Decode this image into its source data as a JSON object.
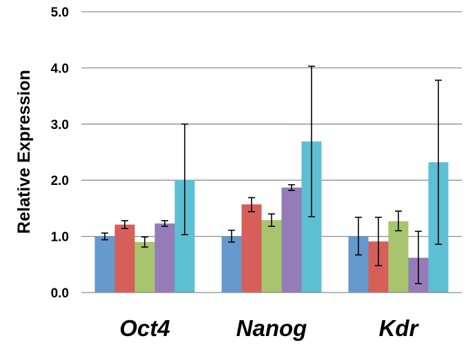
{
  "chart_data": {
    "type": "bar",
    "title": "",
    "xlabel": "",
    "ylabel": "Relative Expression",
    "ylim": [
      0,
      5
    ],
    "yticks": [
      "0.0",
      "1.0",
      "2.0",
      "3.0",
      "4.0",
      "5.0"
    ],
    "categories": [
      "Oct4",
      "Nanog",
      "Kdr"
    ],
    "grid": true,
    "legend": "none",
    "series": [
      {
        "color": "#6699cc",
        "values": [
          1.0,
          1.0,
          1.0
        ],
        "err_low": [
          0.94,
          0.9,
          0.67
        ],
        "err_high": [
          1.06,
          1.11,
          1.34
        ]
      },
      {
        "color": "#d65f5a",
        "values": [
          1.21,
          1.57,
          0.91
        ],
        "err_low": [
          1.14,
          1.44,
          0.48
        ],
        "err_high": [
          1.28,
          1.69,
          1.34
        ]
      },
      {
        "color": "#a8c46e",
        "values": [
          0.9,
          1.29,
          1.27
        ],
        "err_low": [
          0.81,
          1.18,
          1.1
        ],
        "err_high": [
          0.99,
          1.4,
          1.45
        ]
      },
      {
        "color": "#957cb8",
        "values": [
          1.23,
          1.87,
          0.62
        ],
        "err_low": [
          1.18,
          1.82,
          0.16
        ],
        "err_high": [
          1.28,
          1.92,
          1.09
        ]
      },
      {
        "color": "#5dbfd4",
        "values": [
          2.01,
          2.69,
          2.32
        ],
        "err_low": [
          1.03,
          1.35,
          0.86
        ],
        "err_high": [
          3.0,
          4.03,
          3.78
        ]
      }
    ]
  }
}
